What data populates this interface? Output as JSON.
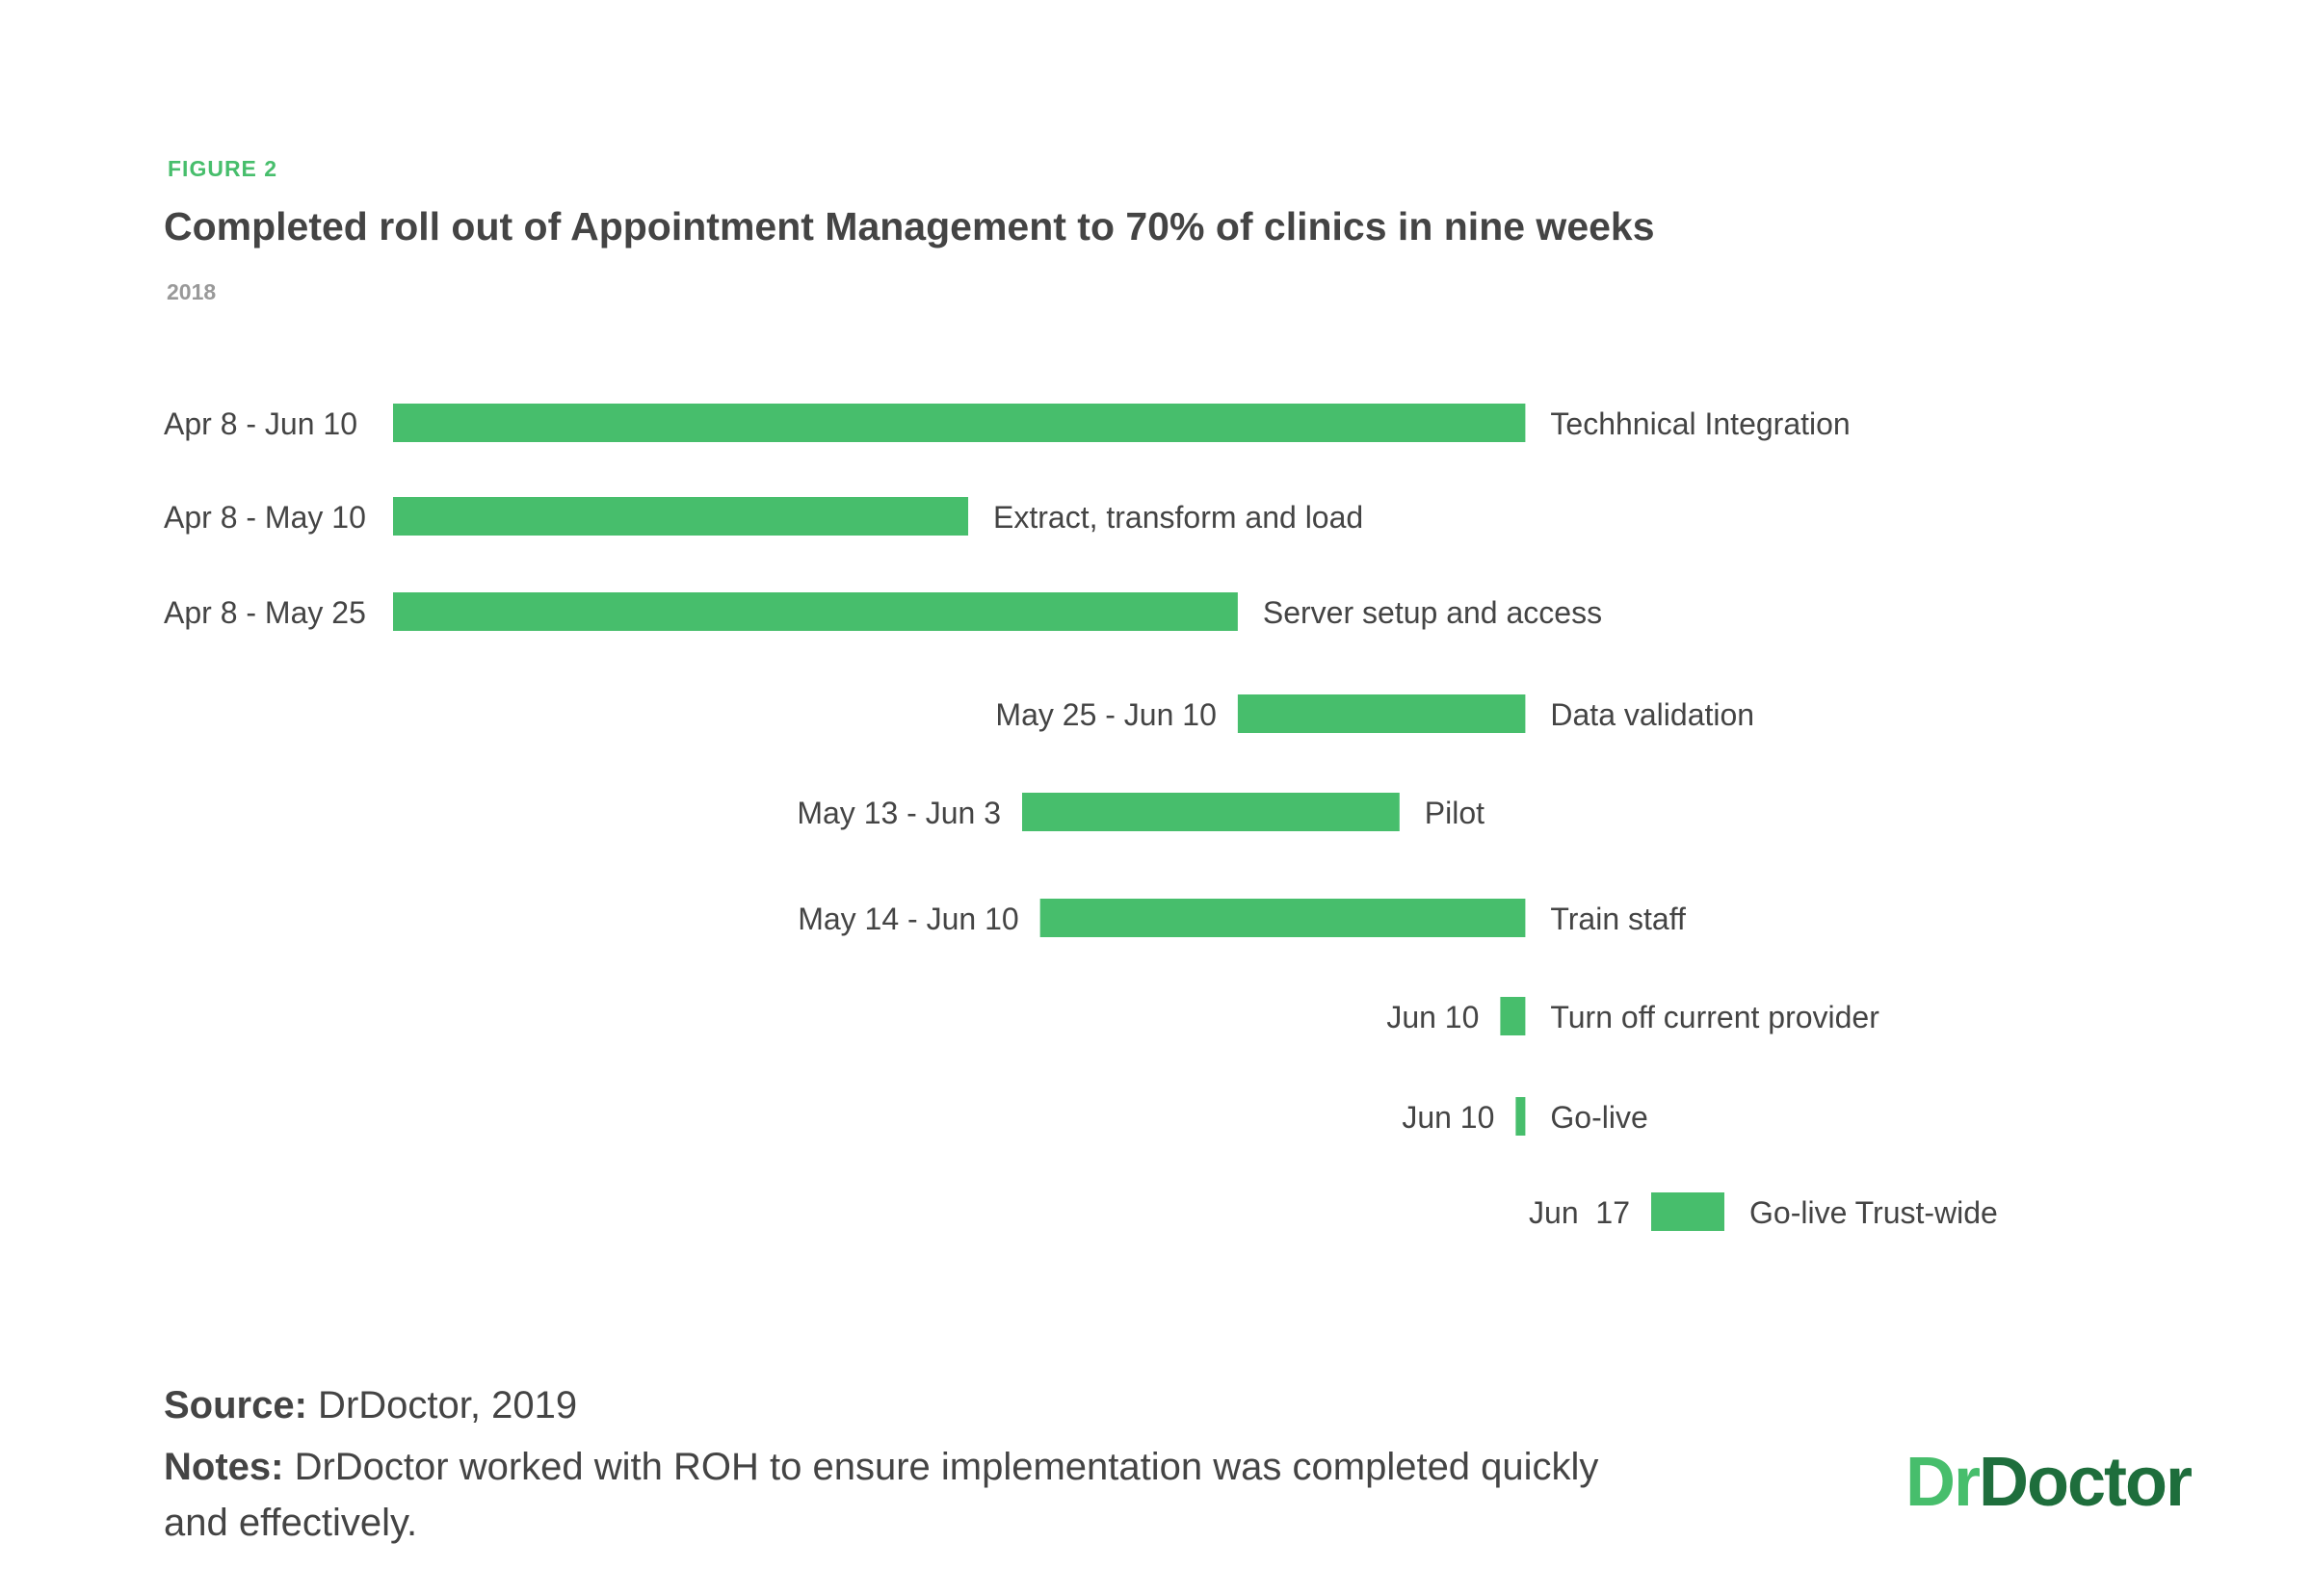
{
  "figure_label": "FIGURE 2",
  "title": "Completed roll out of Appointment Management to 70% of clinics in nine weeks",
  "subtitle": "2018",
  "source": {
    "label": "Source:",
    "text": " DrDoctor, 2019"
  },
  "notes": {
    "label": "Notes:",
    "text": " DrDoctor worked with ROH to ensure implementation was completed quickly and effectively."
  },
  "logo": {
    "part1": "Dr",
    "part2": "Doctor"
  },
  "colors": {
    "bar": "#47BE6C",
    "figure_label": "#47BE6C",
    "logo_light": "#47BE6C",
    "logo_dark": "#1E6E3C",
    "text": "#444444",
    "subtitle": "#999999"
  },
  "chart_data": {
    "type": "gantt",
    "year": "2018",
    "date_range": [
      "2018-04-08",
      "2018-06-17"
    ],
    "tasks": [
      {
        "name": "Techhnical Integration",
        "dates_label": "Apr 8 - Jun 10",
        "start": "2018-04-08",
        "end": "2018-06-10"
      },
      {
        "name": "Extract, transform and load",
        "dates_label": "Apr 8 - May 10",
        "start": "2018-04-08",
        "end": "2018-05-10"
      },
      {
        "name": "Server setup and access",
        "dates_label": "Apr 8 - May 25",
        "start": "2018-04-08",
        "end": "2018-05-25"
      },
      {
        "name": "Data validation",
        "dates_label": "May 25 - Jun 10",
        "start": "2018-05-25",
        "end": "2018-06-10"
      },
      {
        "name": "Pilot",
        "dates_label": "May 13 - Jun 3",
        "start": "2018-05-13",
        "end": "2018-06-03"
      },
      {
        "name": "Train staff",
        "dates_label": "May 14 - Jun 10",
        "start": "2018-05-14",
        "end": "2018-06-10"
      },
      {
        "name": "Turn off current provider",
        "dates_label": "Jun 10",
        "start": "2018-06-10",
        "end": "2018-06-10"
      },
      {
        "name": "Go-live",
        "dates_label": "Jun 10",
        "start": "2018-06-10",
        "end": "2018-06-10"
      },
      {
        "name": "Go-live Trust-wide",
        "dates_label": "Jun  17",
        "start": "2018-06-17",
        "end": "2018-06-17"
      }
    ]
  }
}
